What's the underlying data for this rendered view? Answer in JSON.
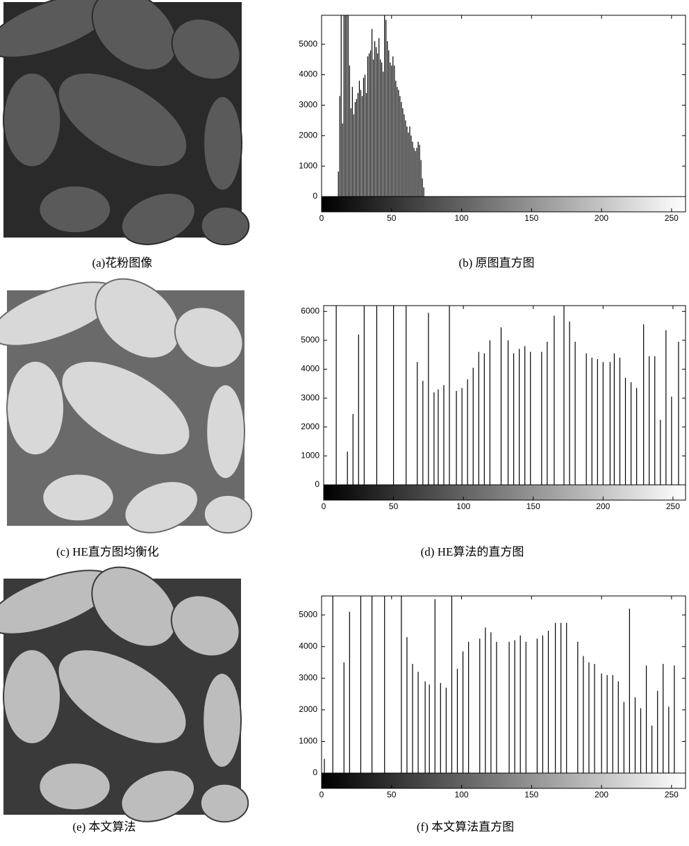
{
  "figures": [
    {
      "caption": "(a)花粉图像"
    },
    {
      "caption": "(c) HE直方图均衡化"
    },
    {
      "caption": "(e) 本文算法"
    }
  ],
  "chart_data": [
    {
      "type": "stem",
      "caption": "(b) 原图直方图",
      "color": "#000000",
      "x": [
        12,
        13,
        14,
        15,
        16,
        17,
        18,
        19,
        20,
        21,
        22,
        23,
        24,
        25,
        26,
        27,
        28,
        29,
        30,
        31,
        32,
        33,
        34,
        35,
        36,
        37,
        38,
        39,
        40,
        41,
        42,
        43,
        44,
        45,
        46,
        47,
        48,
        49,
        50,
        51,
        52,
        53,
        54,
        55,
        56,
        57,
        58,
        59,
        60,
        61,
        62,
        63,
        64,
        65,
        66,
        67,
        68,
        69,
        70,
        71,
        72,
        73
      ],
      "values": [
        820,
        3300,
        5950,
        2400,
        5950,
        5950,
        5950,
        5950,
        4300,
        2900,
        3600,
        2700,
        3100,
        3200,
        3400,
        3800,
        3500,
        3300,
        3900,
        4000,
        3400,
        4600,
        4700,
        4800,
        5500,
        4500,
        5100,
        4900,
        4700,
        5200,
        4500,
        4400,
        4100,
        5950,
        5800,
        5100,
        4800,
        4400,
        4300,
        4600,
        4300,
        3800,
        3600,
        3500,
        3300,
        3100,
        2900,
        2700,
        2500,
        2300,
        2100,
        2300,
        2000,
        1800,
        1600,
        1500,
        1600,
        1800,
        1700,
        1200,
        600,
        300
      ],
      "xlim": [
        0,
        260
      ],
      "ylim": [
        0,
        5950
      ],
      "xticks": [
        0,
        50,
        100,
        150,
        200,
        250
      ],
      "yticks": [
        0,
        1000,
        2000,
        3000,
        4000,
        5000
      ]
    },
    {
      "type": "stem",
      "caption": "(d) HE算法的直方图",
      "color": "#000000",
      "x": [
        9,
        17,
        21,
        25,
        29,
        38,
        50,
        59,
        67,
        71,
        75,
        79,
        82,
        86,
        90,
        95,
        99,
        103,
        107,
        111,
        115,
        119,
        127,
        132,
        136,
        140,
        144,
        148,
        156,
        160,
        165,
        172,
        176,
        180,
        188,
        192,
        196,
        200,
        205,
        208,
        212,
        216,
        220,
        224,
        229,
        233,
        237,
        241,
        245,
        249,
        254
      ],
      "values": [
        6200,
        1150,
        2450,
        5200,
        6200,
        6200,
        6200,
        6200,
        4250,
        3600,
        5950,
        3200,
        3300,
        3450,
        6200,
        3250,
        3350,
        3650,
        4050,
        4600,
        4550,
        5000,
        5450,
        5000,
        4550,
        4700,
        4800,
        4600,
        4600,
        4950,
        5850,
        6200,
        5650,
        4950,
        4550,
        4400,
        4350,
        4250,
        4250,
        4550,
        4400,
        3700,
        3550,
        3350,
        5550,
        4450,
        4450,
        2250,
        5350,
        3050,
        4950
      ],
      "xlim": [
        0,
        259
      ],
      "ylim": [
        0,
        6200
      ],
      "xticks": [
        0,
        50,
        100,
        150,
        200,
        250
      ],
      "yticks": [
        0,
        1000,
        2000,
        3000,
        4000,
        5000,
        6000
      ]
    },
    {
      "type": "stem",
      "caption": "(f) 本文算法直方图",
      "color": "#000000",
      "x": [
        2,
        8,
        16,
        20,
        28,
        36,
        45,
        57,
        61,
        65,
        69,
        74,
        77,
        81,
        85,
        89,
        93,
        97,
        101,
        105,
        113,
        117,
        121,
        125,
        134,
        138,
        142,
        146,
        154,
        158,
        162,
        167,
        171,
        175,
        183,
        187,
        191,
        195,
        200,
        204,
        208,
        212,
        216,
        220,
        224,
        228,
        232,
        236,
        240,
        244,
        248,
        252
      ],
      "values": [
        450,
        5600,
        3500,
        5100,
        5600,
        5600,
        5600,
        5600,
        4300,
        3450,
        3200,
        2900,
        2800,
        5500,
        2850,
        2700,
        5600,
        3300,
        3850,
        4150,
        4250,
        4600,
        4450,
        4150,
        4150,
        4200,
        4350,
        4150,
        4250,
        4350,
        4500,
        4750,
        4750,
        4750,
        4150,
        3700,
        3500,
        3450,
        3150,
        3100,
        3100,
        2900,
        2250,
        5200,
        2400,
        2050,
        3400,
        1500,
        2600,
        3450,
        2100,
        3400
      ],
      "xlim": [
        0,
        260
      ],
      "ylim": [
        0,
        5600
      ],
      "xticks": [
        0,
        50,
        100,
        150,
        200,
        250
      ],
      "yticks": [
        0,
        1000,
        2000,
        3000,
        4000,
        5000
      ]
    }
  ]
}
